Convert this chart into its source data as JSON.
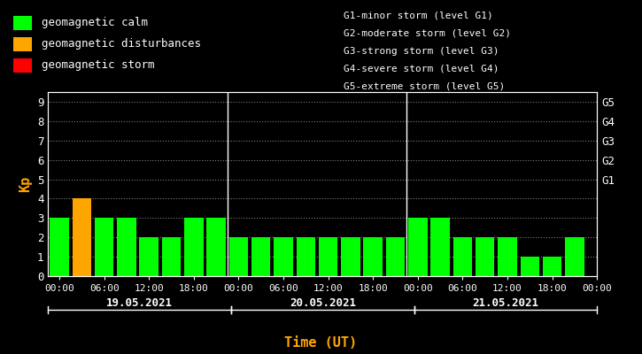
{
  "background_color": "#000000",
  "plot_bg_color": "#000000",
  "text_color": "#ffffff",
  "title_color": "#ffa500",
  "bar_width": 0.85,
  "days": [
    "19.05.2021",
    "20.05.2021",
    "21.05.2021"
  ],
  "kp_values": [
    [
      3,
      4,
      3,
      3,
      2,
      2,
      3,
      3
    ],
    [
      2,
      2,
      2,
      2,
      2,
      2,
      2,
      2
    ],
    [
      3,
      3,
      2,
      2,
      2,
      1,
      1,
      2
    ]
  ],
  "color_calm": "#00ff00",
  "color_disturbance": "#ffa500",
  "color_storm": "#ff0000",
  "calm_threshold": 4,
  "disturbance_threshold": 5,
  "ylim": [
    0,
    9.5
  ],
  "yticks": [
    0,
    1,
    2,
    3,
    4,
    5,
    6,
    7,
    8,
    9
  ],
  "xtick_labels": [
    "00:00",
    "06:00",
    "12:00",
    "18:00"
  ],
  "right_ytick_labels": [
    "G1",
    "G2",
    "G3",
    "G4",
    "G5"
  ],
  "right_ytick_positions": [
    5,
    6,
    7,
    8,
    9
  ],
  "legend_items": [
    {
      "label": "geomagnetic calm",
      "color": "#00ff00"
    },
    {
      "label": "geomagnetic disturbances",
      "color": "#ffa500"
    },
    {
      "label": "geomagnetic storm",
      "color": "#ff0000"
    }
  ],
  "legend_text_right": [
    "G1-minor storm (level G1)",
    "G2-moderate storm (level G2)",
    "G3-strong storm (level G3)",
    "G4-severe storm (level G4)",
    "G5-extreme storm (level G5)"
  ],
  "ylabel": "Kp",
  "xlabel": "Time (UT)",
  "font_family": "monospace",
  "font_size": 9,
  "font_size_small": 8,
  "grid_color": "#ffffff",
  "separator_color": "#ffffff",
  "axis_color": "#ffffff"
}
